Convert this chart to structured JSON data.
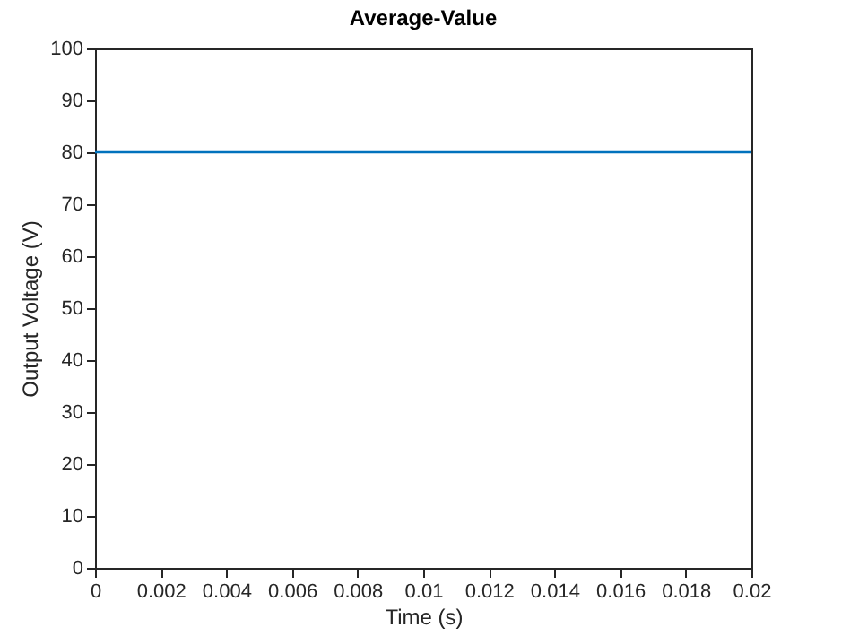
{
  "chart_data": {
    "type": "line",
    "title": "Average-Value",
    "xlabel": "Time (s)",
    "ylabel": "Output Voltage (V)",
    "x": [
      0,
      0.02
    ],
    "series": [
      {
        "color": "#0072bd",
        "values": [
          80,
          80
        ]
      }
    ],
    "xlim": [
      0,
      0.02
    ],
    "xticks": [
      0,
      0.002,
      0.004,
      0.006,
      0.008,
      0.01,
      0.012,
      0.014,
      0.016,
      0.018,
      0.02
    ],
    "ylim": [
      0,
      100
    ],
    "yticks": [
      0,
      10,
      20,
      30,
      40,
      50,
      60,
      70,
      80,
      90,
      100
    ],
    "grid": false,
    "marker": "none",
    "line_style": "solid"
  }
}
